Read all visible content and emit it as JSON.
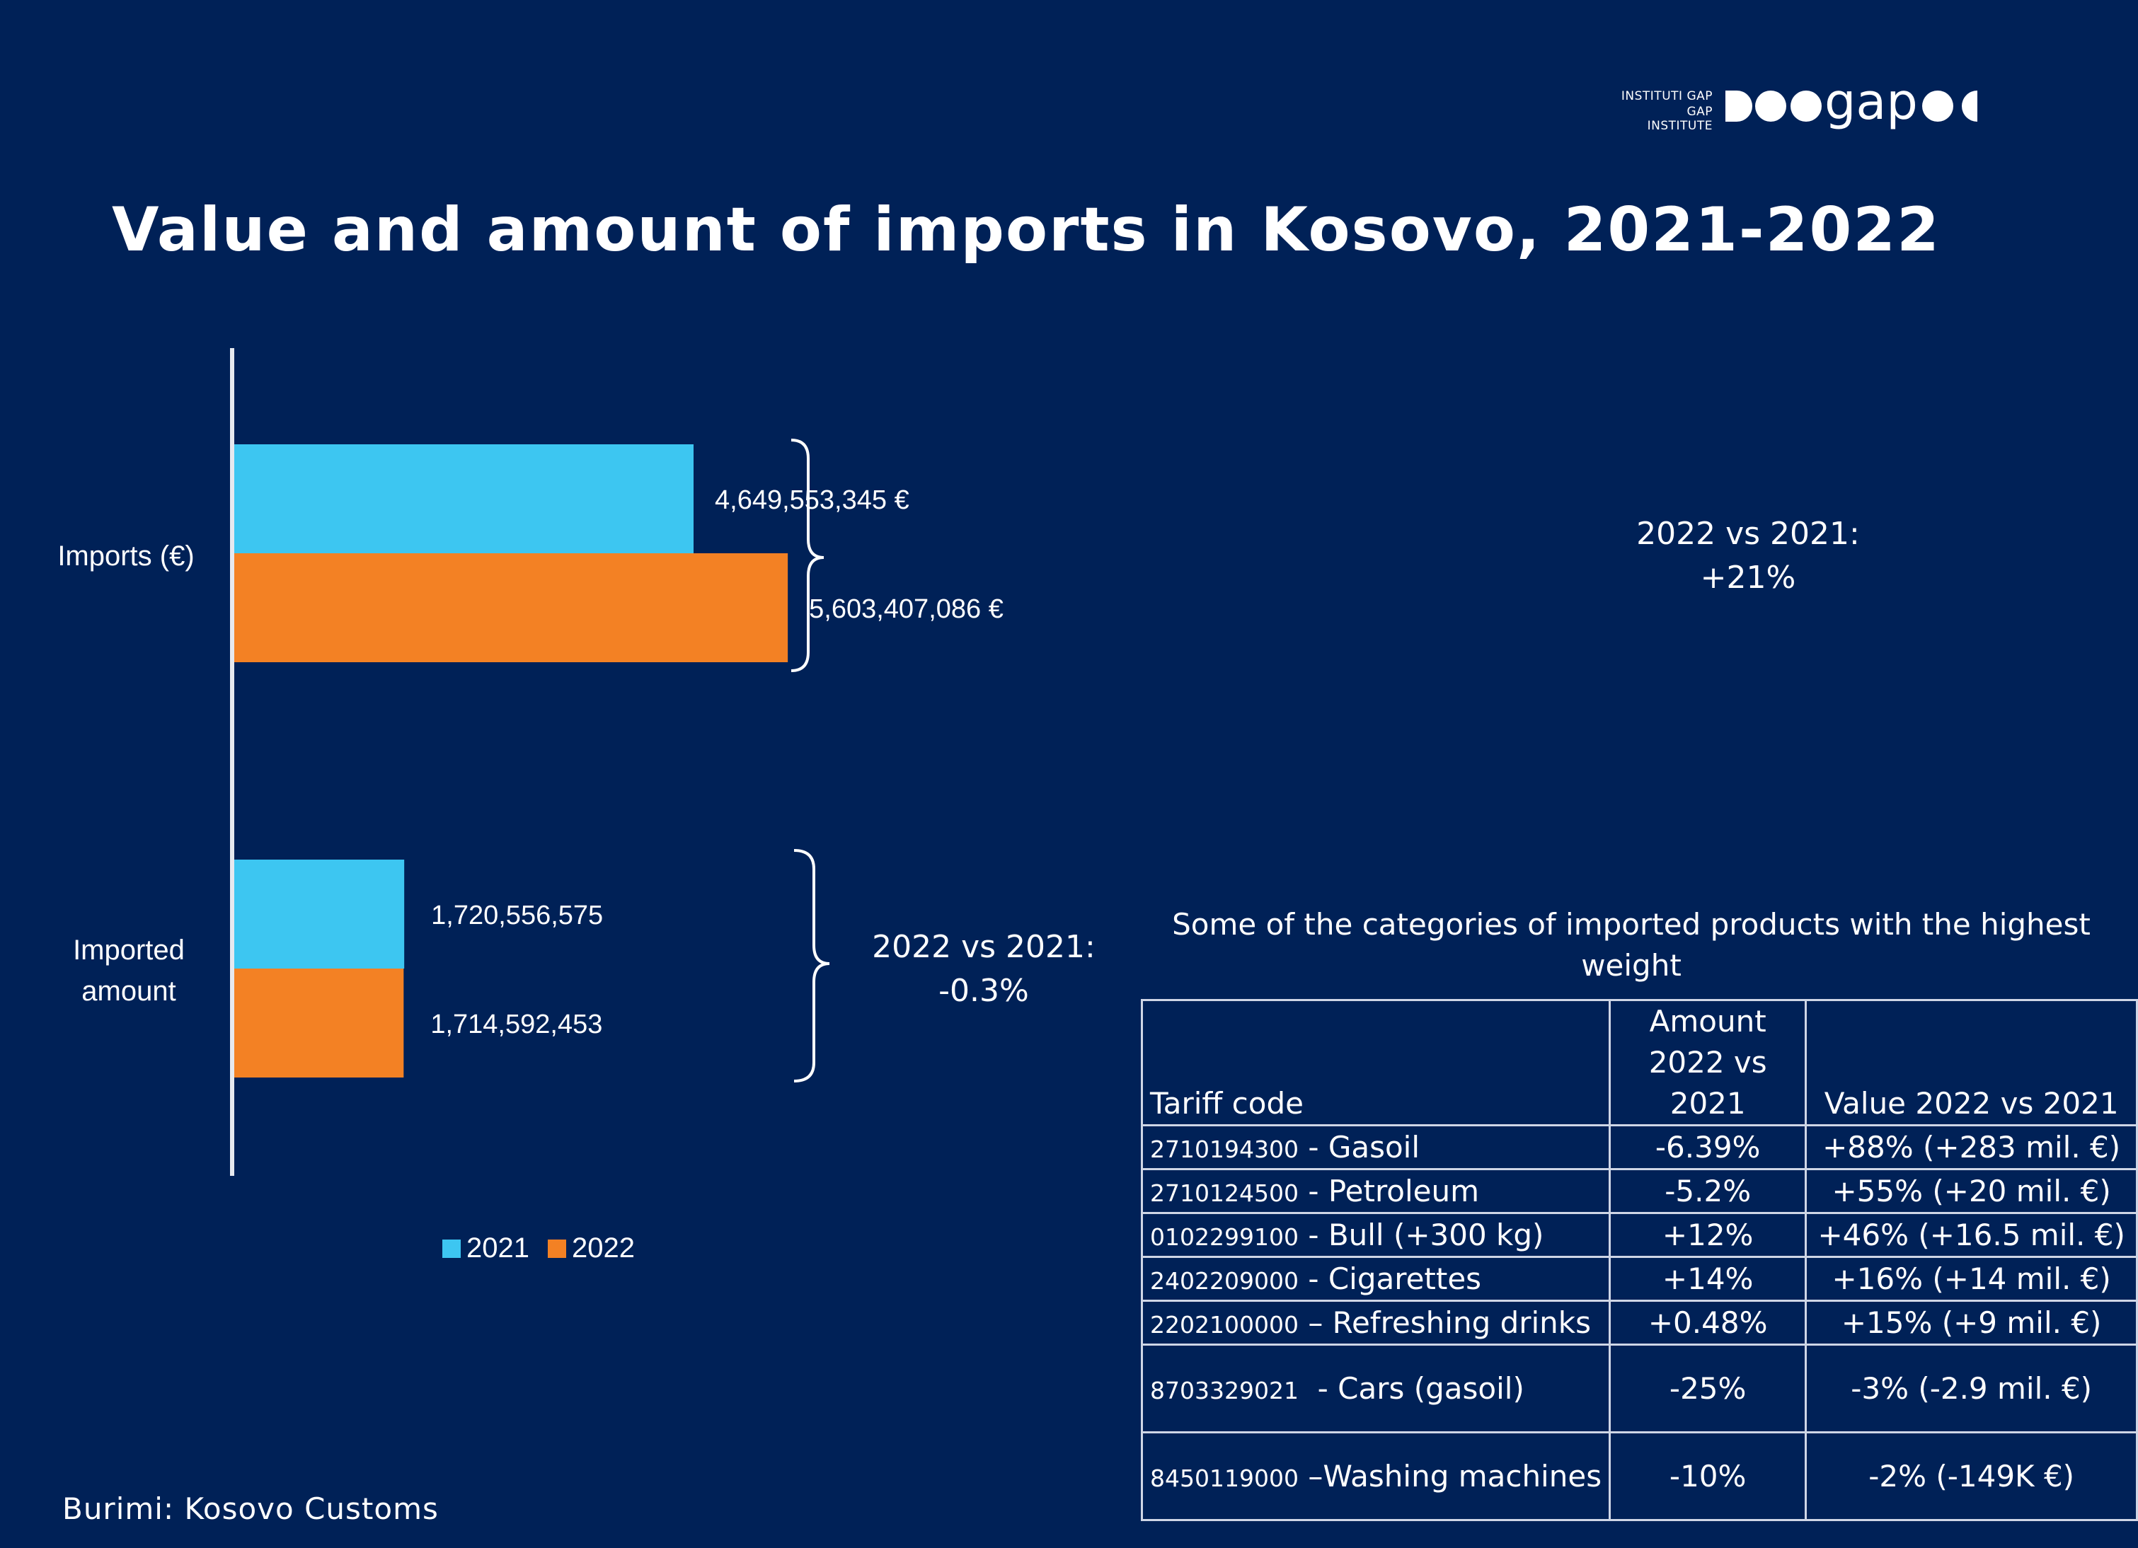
{
  "logo": {
    "line1": "INSTITUTI GAP",
    "line2": "GAP INSTITUTE",
    "wordmark": "gap"
  },
  "title": "Value and amount of imports in Kosovo, 2021-2022",
  "colors": {
    "background": "#002157",
    "series_2021": "#3DC6F1",
    "series_2022": "#F38124"
  },
  "chart_data": {
    "type": "bar",
    "orientation": "horizontal",
    "title": "Value and amount of imports in Kosovo, 2021-2022",
    "categories": [
      "Imports (€)",
      "Imported amount"
    ],
    "series": [
      {
        "name": "2021",
        "values": [
          4649553345,
          1720556575
        ],
        "labels": [
          "4,649,553,345 €",
          "1,720,556,575"
        ]
      },
      {
        "name": "2022",
        "values": [
          5603407086,
          1714592453
        ],
        "labels": [
          "5,603,407,086 €",
          "1,714,592,453"
        ]
      }
    ],
    "xlim": [
      0,
      7000000000
    ],
    "legend": "bottom-left",
    "grid": false,
    "annotations": [
      {
        "line1": "2022 vs 2021:",
        "line2": "+21%"
      },
      {
        "line1": "2022 vs 2021:",
        "line2": "-0.3%"
      }
    ]
  },
  "legend": {
    "items": [
      "2021",
      "2022"
    ]
  },
  "table": {
    "caption": "Some of the categories of imported products with the highest weight",
    "headers": [
      "Tariff code",
      "Amount 2022 vs 2021",
      "Value 2022 vs 2021"
    ],
    "rows": [
      {
        "code": "2710194300",
        "name": " - Gasoil",
        "amount": "-6.39%",
        "value": "+88% (+283 mil. €)"
      },
      {
        "code": "2710124500",
        "name": " - Petroleum",
        "amount": "-5.2%",
        "value": "+55% (+20 mil.  €)"
      },
      {
        "code": "0102299100",
        "name": " - Bull (+300 kg)",
        "amount": "+12%",
        "value": "+46% (+16.5 mil.  €)"
      },
      {
        "code": "2402209000",
        "name": " - Cigarettes",
        "amount": "+14%",
        "value": "+16% (+14 mil. €)"
      },
      {
        "code": "2202100000",
        "name": " – Refreshing drinks",
        "amount": "+0.48%",
        "value": "+15% (+9 mil. €)"
      },
      {
        "code": "8703329021",
        "name": "  - Cars (gasoil)",
        "amount": "-25%",
        "value": "-3% (-2.9 mil.  €)"
      },
      {
        "code": "8450119000",
        "name": " –Washing machines",
        "amount": "-10%",
        "value": "-2% (-149K €)"
      }
    ]
  },
  "source": "Burimi: Kosovo Customs"
}
